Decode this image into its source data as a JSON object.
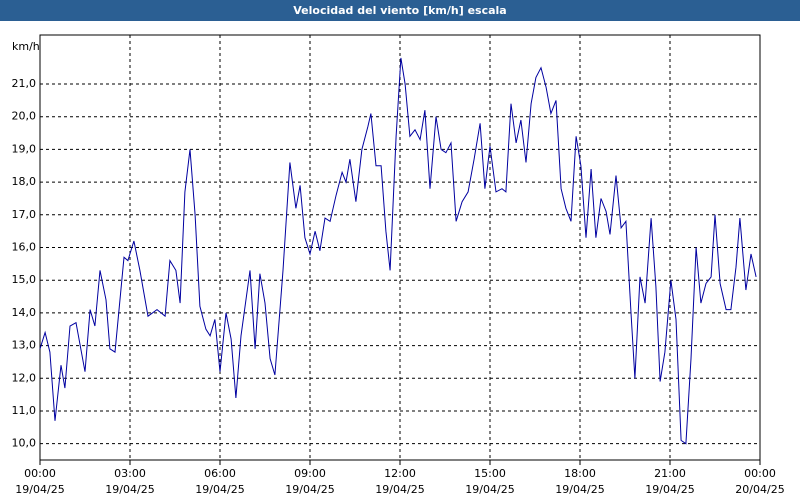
{
  "chart_data": {
    "type": "line",
    "title": "Velocidad del viento [km/h] escala",
    "y_axis_label": "km/h",
    "xlim": [
      0,
      24
    ],
    "xticks": [
      {
        "value": 0,
        "label": "00:00\n19/04/25"
      },
      {
        "value": 3,
        "label": "03:00\n19/04/25"
      },
      {
        "value": 6,
        "label": "06:00\n19/04/25"
      },
      {
        "value": 9,
        "label": "09:00\n19/04/25"
      },
      {
        "value": 12,
        "label": "12:00\n19/04/25"
      },
      {
        "value": 15,
        "label": "15:00\n19/04/25"
      },
      {
        "value": 18,
        "label": "18:00\n19/04/25"
      },
      {
        "value": 21,
        "label": "21:00\n19/04/25"
      },
      {
        "value": 24,
        "label": "00:00\n20/04/25"
      }
    ],
    "ylim": [
      9.5,
      22.5
    ],
    "yticks": [
      {
        "value": 10,
        "label": "10,0"
      },
      {
        "value": 11,
        "label": "11,0"
      },
      {
        "value": 12,
        "label": "12,0"
      },
      {
        "value": 13,
        "label": "13,0"
      },
      {
        "value": 14,
        "label": "14,0"
      },
      {
        "value": 15,
        "label": "15,0"
      },
      {
        "value": 16,
        "label": "16,0"
      },
      {
        "value": 17,
        "label": "17,0"
      },
      {
        "value": 18,
        "label": "18,0"
      },
      {
        "value": 19,
        "label": "19,0"
      },
      {
        "value": 20,
        "label": "20,0"
      },
      {
        "value": 21,
        "label": "21,0"
      }
    ],
    "grid": true,
    "series": [
      {
        "color": "#0000a0",
        "x": [
          0,
          0.17,
          0.33,
          0.5,
          0.7,
          0.83,
          1.0,
          1.2,
          1.5,
          1.67,
          1.83,
          2.0,
          2.2,
          2.33,
          2.5,
          2.8,
          2.93,
          3.13,
          3.33,
          3.6,
          3.9,
          4.17,
          4.33,
          4.53,
          4.67,
          4.83,
          5.0,
          5.17,
          5.33,
          5.53,
          5.67,
          5.83,
          6.0,
          6.2,
          6.37,
          6.53,
          6.7,
          7.0,
          7.17,
          7.33,
          7.5,
          7.67,
          7.83,
          8.1,
          8.33,
          8.53,
          8.67,
          8.83,
          9.0,
          9.17,
          9.33,
          9.5,
          9.67,
          9.87,
          10.07,
          10.2,
          10.33,
          10.53,
          10.73,
          10.93,
          11.03,
          11.2,
          11.37,
          11.53,
          11.67,
          11.87,
          12.03,
          12.17,
          12.33,
          12.5,
          12.67,
          12.83,
          13.0,
          13.2,
          13.37,
          13.53,
          13.7,
          13.87,
          14.07,
          14.27,
          14.47,
          14.67,
          14.83,
          15.0,
          15.2,
          15.4,
          15.53,
          15.7,
          15.87,
          16.03,
          16.2,
          16.37,
          16.53,
          16.7,
          16.87,
          17.03,
          17.2,
          17.37,
          17.53,
          17.7,
          17.87,
          18.03,
          18.2,
          18.37,
          18.53,
          18.7,
          18.87,
          19.0,
          19.2,
          19.37,
          19.53,
          19.7,
          19.83,
          20.0,
          20.17,
          20.37,
          20.53,
          20.67,
          20.83,
          21.03,
          21.2,
          21.37,
          21.53,
          21.7,
          21.87,
          22.03,
          22.2,
          22.37,
          22.5,
          22.67,
          22.87,
          23.03,
          23.2,
          23.33,
          23.53,
          23.7,
          23.87
        ],
        "values": [
          12.9,
          13.4,
          12.8,
          10.7,
          12.4,
          11.7,
          13.6,
          13.7,
          12.2,
          14.1,
          13.6,
          15.3,
          14.4,
          12.9,
          12.8,
          15.7,
          15.6,
          16.2,
          15.3,
          13.9,
          14.1,
          13.9,
          15.6,
          15.3,
          14.3,
          17.7,
          19.0,
          17.0,
          14.2,
          13.5,
          13.3,
          13.8,
          12.2,
          14.0,
          13.2,
          11.4,
          13.3,
          15.3,
          12.9,
          15.2,
          14.3,
          12.6,
          12.1,
          15.3,
          18.6,
          17.2,
          17.9,
          16.3,
          15.8,
          16.5,
          15.9,
          16.9,
          16.8,
          17.6,
          18.3,
          18.0,
          18.7,
          17.4,
          19.0,
          19.7,
          20.1,
          18.5,
          18.5,
          16.5,
          15.3,
          19.4,
          21.8,
          21.0,
          19.4,
          19.6,
          19.3,
          20.2,
          17.8,
          20.0,
          19.0,
          18.9,
          19.2,
          16.8,
          17.4,
          17.7,
          18.7,
          19.8,
          17.8,
          19.1,
          17.7,
          17.8,
          17.7,
          20.4,
          19.2,
          19.9,
          18.6,
          20.4,
          21.2,
          21.5,
          20.9,
          20.1,
          20.5,
          17.8,
          17.2,
          16.8,
          19.4,
          18.5,
          16.3,
          18.4,
          16.3,
          17.5,
          17.1,
          16.4,
          18.2,
          16.6,
          16.8,
          14.0,
          12.0,
          15.1,
          14.3,
          16.9,
          14.8,
          11.9,
          12.8,
          15.0,
          13.8,
          10.1,
          10.0,
          12.6,
          16.0,
          14.3,
          14.9,
          15.1,
          17.0,
          14.9,
          14.1,
          14.1,
          15.4,
          16.9,
          14.7,
          15.8,
          15.1
        ]
      }
    ]
  }
}
